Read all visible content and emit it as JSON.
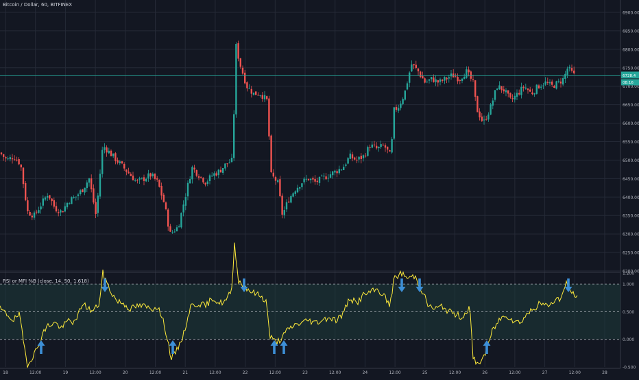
{
  "header": {
    "title": "Bitcoin / Dollar, 60, BITFINEX"
  },
  "indicator": {
    "title": "RSI or MFI %B (close, 14, 50, 1.618)"
  },
  "colors": {
    "background": "#131722",
    "grid": "#252a37",
    "up": "#26a69a",
    "down": "#ef5350",
    "indicator_line": "#ffeb3b",
    "band_fill": "#1e3a3a",
    "band_line": "#d1d4dc",
    "arrow": "#3d8fd6",
    "price_line": "#26a69a"
  },
  "chart_data": [
    {
      "type": "candlestick",
      "title": "Bitcoin / Dollar, 60, BITFINEX",
      "ylim": [
        6200,
        6900
      ],
      "y_ticks": [
        "6900.00",
        "6850.00",
        "6800.00",
        "6750.00",
        "6700.00",
        "6650.00",
        "6600.00",
        "6550.00",
        "6500.00",
        "6450.00",
        "6400.00",
        "6350.00",
        "6300.00",
        "6250.00",
        "6200.00"
      ],
      "x_ticks": [
        "18",
        "12:00",
        "19",
        "12:00",
        "20",
        "12:00",
        "21",
        "12:00",
        "22",
        "12:00",
        "23",
        "12:00",
        "24",
        "12:00",
        "25",
        "12:00",
        "26",
        "12:00",
        "27",
        "12:00",
        "28"
      ],
      "price_labels": [
        "6728.4",
        "08:16",
        "6700.00"
      ],
      "current_price": 6728.4,
      "anchors": [
        [
          0,
          6520
        ],
        [
          10,
          6500
        ],
        [
          20,
          6510
        ],
        [
          30,
          6490
        ],
        [
          40,
          6360
        ],
        [
          50,
          6350
        ],
        [
          60,
          6380
        ],
        [
          70,
          6410
        ],
        [
          80,
          6370
        ],
        [
          90,
          6360
        ],
        [
          100,
          6390
        ],
        [
          110,
          6400
        ],
        [
          120,
          6420
        ],
        [
          130,
          6450
        ],
        [
          140,
          6350
        ],
        [
          150,
          6540
        ],
        [
          160,
          6520
        ],
        [
          170,
          6500
        ],
        [
          180,
          6480
        ],
        [
          190,
          6460
        ],
        [
          200,
          6440
        ],
        [
          210,
          6450
        ],
        [
          220,
          6460
        ],
        [
          230,
          6440
        ],
        [
          240,
          6380
        ],
        [
          248,
          6300
        ],
        [
          260,
          6320
        ],
        [
          270,
          6400
        ],
        [
          280,
          6480
        ],
        [
          290,
          6460
        ],
        [
          300,
          6440
        ],
        [
          310,
          6460
        ],
        [
          320,
          6470
        ],
        [
          330,
          6490
        ],
        [
          340,
          6500
        ],
        [
          343,
          6820
        ],
        [
          350,
          6760
        ],
        [
          360,
          6700
        ],
        [
          370,
          6680
        ],
        [
          380,
          6680
        ],
        [
          390,
          6660
        ],
        [
          395,
          6460
        ],
        [
          405,
          6440
        ],
        [
          412,
          6350
        ],
        [
          420,
          6390
        ],
        [
          430,
          6420
        ],
        [
          440,
          6440
        ],
        [
          450,
          6450
        ],
        [
          460,
          6440
        ],
        [
          470,
          6450
        ],
        [
          480,
          6460
        ],
        [
          490,
          6470
        ],
        [
          500,
          6480
        ],
        [
          510,
          6510
        ],
        [
          520,
          6500
        ],
        [
          530,
          6510
        ],
        [
          540,
          6540
        ],
        [
          550,
          6530
        ],
        [
          560,
          6540
        ],
        [
          570,
          6510
        ],
        [
          575,
          6640
        ],
        [
          580,
          6640
        ],
        [
          590,
          6680
        ],
        [
          600,
          6760
        ],
        [
          610,
          6740
        ],
        [
          620,
          6710
        ],
        [
          630,
          6720
        ],
        [
          640,
          6710
        ],
        [
          650,
          6720
        ],
        [
          660,
          6730
        ],
        [
          670,
          6720
        ],
        [
          680,
          6740
        ],
        [
          690,
          6710
        ],
        [
          695,
          6640
        ],
        [
          705,
          6600
        ],
        [
          715,
          6640
        ],
        [
          725,
          6700
        ],
        [
          735,
          6690
        ],
        [
          745,
          6660
        ],
        [
          755,
          6680
        ],
        [
          765,
          6700
        ],
        [
          775,
          6680
        ],
        [
          785,
          6700
        ],
        [
          795,
          6710
        ],
        [
          805,
          6700
        ],
        [
          815,
          6710
        ],
        [
          822,
          6720
        ],
        [
          828,
          6750
        ],
        [
          838,
          6728
        ]
      ]
    },
    {
      "type": "line",
      "title": "RSI or MFI %B (close, 14, 50, 1.618)",
      "ylim": [
        -0.5,
        1.2
      ],
      "y_ticks": [
        "1.200",
        "1.000",
        "0.500",
        "0.000",
        "-0.500"
      ],
      "bands": [
        1.0,
        0.5,
        0.0
      ],
      "arrows_down_x": [
        153,
        356,
        586,
        612,
        829
      ],
      "arrows_up_x": [
        60,
        252,
        400,
        414,
        710
      ],
      "anchors": [
        [
          0,
          0.55
        ],
        [
          10,
          0.45
        ],
        [
          20,
          0.35
        ],
        [
          28,
          0.45
        ],
        [
          35,
          -0.1
        ],
        [
          40,
          -0.45
        ],
        [
          48,
          -0.3
        ],
        [
          55,
          -0.15
        ],
        [
          62,
          0.1
        ],
        [
          70,
          0.25
        ],
        [
          80,
          0.3
        ],
        [
          90,
          0.2
        ],
        [
          100,
          0.35
        ],
        [
          110,
          0.3
        ],
        [
          120,
          0.65
        ],
        [
          135,
          0.5
        ],
        [
          145,
          0.65
        ],
        [
          150,
          1.2
        ],
        [
          160,
          0.9
        ],
        [
          170,
          0.7
        ],
        [
          180,
          0.65
        ],
        [
          190,
          0.55
        ],
        [
          200,
          0.6
        ],
        [
          210,
          0.6
        ],
        [
          220,
          0.55
        ],
        [
          230,
          0.6
        ],
        [
          240,
          0.25
        ],
        [
          250,
          -0.35
        ],
        [
          258,
          -0.2
        ],
        [
          268,
          0.1
        ],
        [
          278,
          0.6
        ],
        [
          290,
          0.65
        ],
        [
          300,
          0.6
        ],
        [
          310,
          0.75
        ],
        [
          320,
          0.65
        ],
        [
          330,
          0.7
        ],
        [
          338,
          0.9
        ],
        [
          342,
          1.75
        ],
        [
          348,
          1.05
        ],
        [
          358,
          0.95
        ],
        [
          368,
          0.85
        ],
        [
          378,
          0.8
        ],
        [
          388,
          0.7
        ],
        [
          394,
          0.05
        ],
        [
          402,
          -0.05
        ],
        [
          410,
          0.0
        ],
        [
          418,
          0.15
        ],
        [
          428,
          0.25
        ],
        [
          440,
          0.3
        ],
        [
          450,
          0.35
        ],
        [
          460,
          0.3
        ],
        [
          470,
          0.35
        ],
        [
          480,
          0.4
        ],
        [
          490,
          0.35
        ],
        [
          500,
          0.45
        ],
        [
          510,
          0.75
        ],
        [
          520,
          0.65
        ],
        [
          530,
          0.8
        ],
        [
          540,
          0.85
        ],
        [
          550,
          0.9
        ],
        [
          560,
          0.8
        ],
        [
          568,
          0.6
        ],
        [
          575,
          1.1
        ],
        [
          585,
          1.2
        ],
        [
          595,
          1.1
        ],
        [
          605,
          1.15
        ],
        [
          615,
          0.9
        ],
        [
          625,
          0.6
        ],
        [
          635,
          0.55
        ],
        [
          645,
          0.6
        ],
        [
          655,
          0.5
        ],
        [
          665,
          0.45
        ],
        [
          675,
          0.4
        ],
        [
          685,
          0.6
        ],
        [
          690,
          -0.35
        ],
        [
          698,
          -0.45
        ],
        [
          708,
          -0.25
        ],
        [
          718,
          0.15
        ],
        [
          728,
          0.35
        ],
        [
          738,
          0.45
        ],
        [
          748,
          0.35
        ],
        [
          758,
          0.3
        ],
        [
          768,
          0.45
        ],
        [
          778,
          0.55
        ],
        [
          788,
          0.65
        ],
        [
          798,
          0.6
        ],
        [
          808,
          0.7
        ],
        [
          818,
          0.75
        ],
        [
          826,
          1.0
        ],
        [
          834,
          0.85
        ],
        [
          842,
          0.75
        ]
      ]
    }
  ]
}
